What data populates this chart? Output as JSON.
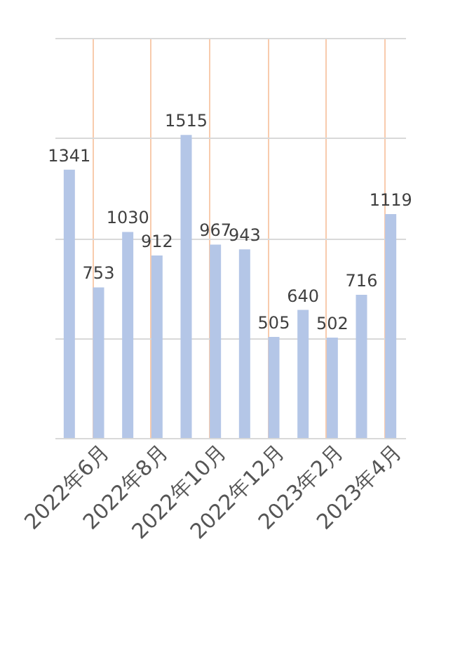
{
  "chart_data": {
    "type": "bar",
    "categories": [
      null,
      "2022年6月",
      null,
      "2022年8月",
      null,
      "2022年10月",
      null,
      "2022年12月",
      null,
      "2023年2月",
      null,
      "2023年4月"
    ],
    "values": [
      1341,
      753,
      1030,
      912,
      1515,
      967,
      943,
      505,
      640,
      502,
      716,
      1119
    ],
    "color": "#b4c6e7",
    "ylim": [
      0,
      2000
    ],
    "yticks": [
      0,
      500,
      1000,
      1500,
      2000
    ],
    "grid": true,
    "tick_labels": "x",
    "data_labels": true
  }
}
